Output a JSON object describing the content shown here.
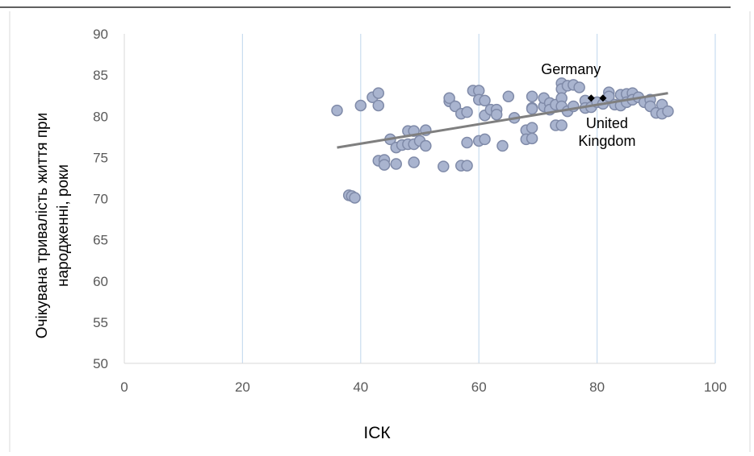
{
  "chart_data": {
    "type": "scatter",
    "xlabel": "ІСК",
    "ylabel_lines": [
      "Очікувана тривалість життя при",
      "народженні, роки"
    ],
    "xlim": [
      0,
      100
    ],
    "ylim": [
      50,
      90
    ],
    "x_ticks": [
      0,
      20,
      40,
      60,
      80,
      100
    ],
    "y_ticks": [
      50,
      55,
      60,
      65,
      70,
      75,
      80,
      85,
      90
    ],
    "grid": "vertical",
    "colors": {
      "marker_fill": "#a9b4cf",
      "marker_stroke": "#7f8aa8",
      "trendline": "#7f7f7f",
      "gridline": "#c9dcef",
      "axis": "#d9d9d9",
      "tick_label": "#595959",
      "highlight": "#000000"
    },
    "trendline": {
      "x": [
        36,
        92
      ],
      "y": [
        76.2,
        82.8
      ]
    },
    "annotations": [
      {
        "text": "Germany",
        "x": 79,
        "y": 82.2
      },
      {
        "text": "United Kingdom",
        "x": 81,
        "y": 82.2
      }
    ],
    "highlight_points": [
      {
        "name": "Germany",
        "x": 79,
        "y": 82.2
      },
      {
        "name": "United Kingdom",
        "x": 81,
        "y": 82.2
      }
    ],
    "points": [
      {
        "x": 36,
        "y": 80.7
      },
      {
        "x": 38,
        "y": 70.4
      },
      {
        "x": 38.5,
        "y": 70.3
      },
      {
        "x": 39,
        "y": 70.1
      },
      {
        "x": 40,
        "y": 81.3
      },
      {
        "x": 42,
        "y": 82.3
      },
      {
        "x": 43,
        "y": 82.8
      },
      {
        "x": 43,
        "y": 81.3
      },
      {
        "x": 43,
        "y": 74.6
      },
      {
        "x": 44,
        "y": 74.7
      },
      {
        "x": 44,
        "y": 74.1
      },
      {
        "x": 45,
        "y": 77.2
      },
      {
        "x": 46,
        "y": 76.2
      },
      {
        "x": 46,
        "y": 74.2
      },
      {
        "x": 47,
        "y": 76.5
      },
      {
        "x": 48,
        "y": 76.6
      },
      {
        "x": 48,
        "y": 78.2
      },
      {
        "x": 49,
        "y": 78.2
      },
      {
        "x": 49,
        "y": 76.6
      },
      {
        "x": 49,
        "y": 74.4
      },
      {
        "x": 50,
        "y": 77
      },
      {
        "x": 51,
        "y": 78.3
      },
      {
        "x": 51,
        "y": 76.4
      },
      {
        "x": 54,
        "y": 73.9
      },
      {
        "x": 55,
        "y": 81.8
      },
      {
        "x": 55,
        "y": 82.2
      },
      {
        "x": 56,
        "y": 81.2
      },
      {
        "x": 57,
        "y": 80.3
      },
      {
        "x": 57,
        "y": 74
      },
      {
        "x": 58,
        "y": 74
      },
      {
        "x": 58,
        "y": 76.8
      },
      {
        "x": 58,
        "y": 80.5
      },
      {
        "x": 59,
        "y": 83.1
      },
      {
        "x": 60,
        "y": 83.1
      },
      {
        "x": 60,
        "y": 82
      },
      {
        "x": 60,
        "y": 77
      },
      {
        "x": 61,
        "y": 77.2
      },
      {
        "x": 61,
        "y": 80.1
      },
      {
        "x": 61,
        "y": 81.9
      },
      {
        "x": 62,
        "y": 80.8
      },
      {
        "x": 63,
        "y": 80.8
      },
      {
        "x": 63,
        "y": 80.2
      },
      {
        "x": 64,
        "y": 76.4
      },
      {
        "x": 65,
        "y": 82.4
      },
      {
        "x": 66,
        "y": 79.8
      },
      {
        "x": 68,
        "y": 78.3
      },
      {
        "x": 68,
        "y": 77.2
      },
      {
        "x": 69,
        "y": 82.4
      },
      {
        "x": 69,
        "y": 81
      },
      {
        "x": 69,
        "y": 80.9
      },
      {
        "x": 69,
        "y": 78.6
      },
      {
        "x": 69,
        "y": 77.3
      },
      {
        "x": 71,
        "y": 81.2
      },
      {
        "x": 71,
        "y": 82.2
      },
      {
        "x": 72,
        "y": 81.6
      },
      {
        "x": 72,
        "y": 80.8
      },
      {
        "x": 73,
        "y": 81.4
      },
      {
        "x": 73,
        "y": 78.9
      },
      {
        "x": 74,
        "y": 84
      },
      {
        "x": 74,
        "y": 83.3
      },
      {
        "x": 74,
        "y": 82.2
      },
      {
        "x": 74,
        "y": 81.2
      },
      {
        "x": 74,
        "y": 78.9
      },
      {
        "x": 75,
        "y": 80.6
      },
      {
        "x": 75,
        "y": 83.7
      },
      {
        "x": 76,
        "y": 81.2
      },
      {
        "x": 76,
        "y": 83.8
      },
      {
        "x": 77,
        "y": 83.5
      },
      {
        "x": 78,
        "y": 81.9
      },
      {
        "x": 78,
        "y": 81
      },
      {
        "x": 79,
        "y": 81.1
      },
      {
        "x": 80,
        "y": 81.7
      },
      {
        "x": 81,
        "y": 81.5
      },
      {
        "x": 82,
        "y": 82.9
      },
      {
        "x": 82,
        "y": 82.4
      },
      {
        "x": 83,
        "y": 81.4
      },
      {
        "x": 84,
        "y": 82.6
      },
      {
        "x": 84,
        "y": 81.3
      },
      {
        "x": 85,
        "y": 82.7
      },
      {
        "x": 85,
        "y": 81.7
      },
      {
        "x": 86,
        "y": 82.8
      },
      {
        "x": 86,
        "y": 82
      },
      {
        "x": 87,
        "y": 82.3
      },
      {
        "x": 88,
        "y": 81.7
      },
      {
        "x": 89,
        "y": 82
      },
      {
        "x": 89,
        "y": 81.2
      },
      {
        "x": 90,
        "y": 80.4
      },
      {
        "x": 91,
        "y": 81.4
      },
      {
        "x": 91,
        "y": 80.3
      },
      {
        "x": 92,
        "y": 80.6
      }
    ]
  }
}
